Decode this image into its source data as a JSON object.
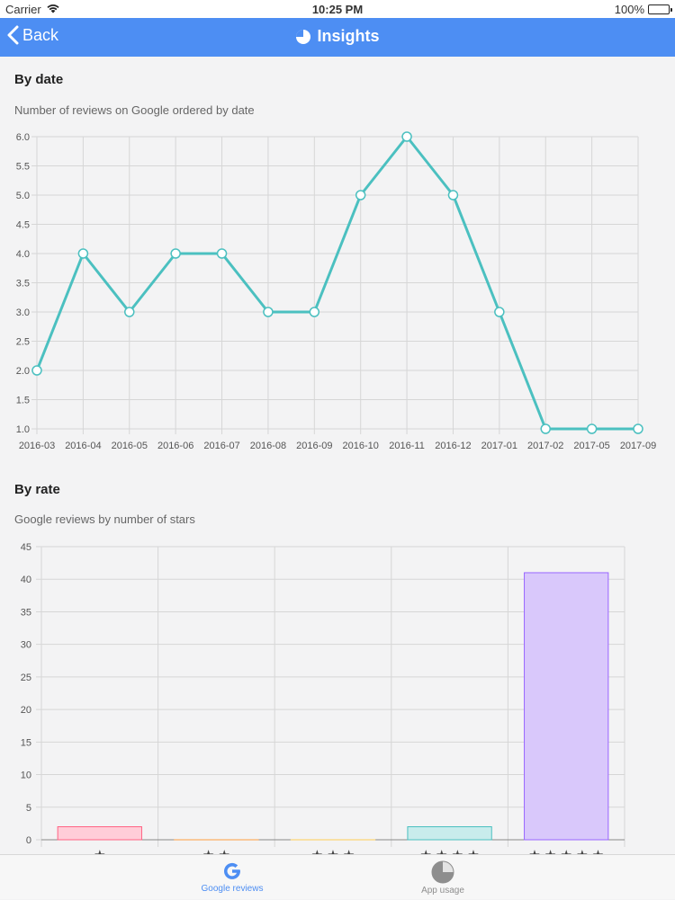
{
  "status_bar": {
    "carrier": "Carrier",
    "time": "10:25 PM",
    "battery": "100%"
  },
  "nav_bar": {
    "back_label": "Back",
    "title": "Insights",
    "background_color": "#4d8ef3"
  },
  "by_date": {
    "heading": "By date",
    "subtitle": "Number of reviews on Google ordered by date"
  },
  "by_rate": {
    "heading": "By rate",
    "subtitle": "Google reviews by number of stars"
  },
  "chart_data": [
    {
      "type": "line",
      "categories": [
        "2016-03",
        "2016-04",
        "2016-05",
        "2016-06",
        "2016-07",
        "2016-08",
        "2016-09",
        "2016-10",
        "2016-11",
        "2016-12",
        "2017-01",
        "2017-02",
        "2017-05",
        "2017-09"
      ],
      "values": [
        2,
        4,
        3,
        4,
        4,
        3,
        3,
        5,
        6,
        5,
        3,
        1,
        1,
        1
      ],
      "ylim": [
        1,
        6
      ],
      "yticks": [
        "1.0",
        "1.5",
        "2.0",
        "2.5",
        "3.0",
        "3.5",
        "4.0",
        "4.5",
        "5.0",
        "5.5",
        "6.0"
      ],
      "ytick_values": [
        1,
        1.5,
        2,
        2.5,
        3,
        3.5,
        4,
        4.5,
        5,
        5.5,
        6
      ],
      "grid": true,
      "line_color": "#4bc0c0"
    },
    {
      "type": "bar",
      "categories": [
        "★",
        "★ ★",
        "★ ★ ★",
        "★ ★ ★ ★",
        "★ ★ ★ ★ ★"
      ],
      "values": [
        2,
        0,
        0,
        2,
        41
      ],
      "ylim": [
        0,
        45
      ],
      "yticks": [
        "0",
        "5",
        "10",
        "15",
        "20",
        "25",
        "30",
        "35",
        "40",
        "45"
      ],
      "ytick_values": [
        0,
        5,
        10,
        15,
        20,
        25,
        30,
        35,
        40,
        45
      ],
      "grid": true,
      "bar_fill_colors": [
        "#ffcdd8",
        "#ffe0b3",
        "#fff2c7",
        "#c8ecec",
        "#d9c8fb"
      ],
      "bar_border_colors": [
        "#ff6384",
        "#ff9f40",
        "#ffcd56",
        "#4bc0c0",
        "#9966ff"
      ]
    }
  ],
  "tab_bar": {
    "tabs": [
      {
        "label": "Google reviews",
        "icon": "google-g-icon",
        "active": true
      },
      {
        "label": "App usage",
        "icon": "pie-chart-icon",
        "active": false
      }
    ]
  }
}
